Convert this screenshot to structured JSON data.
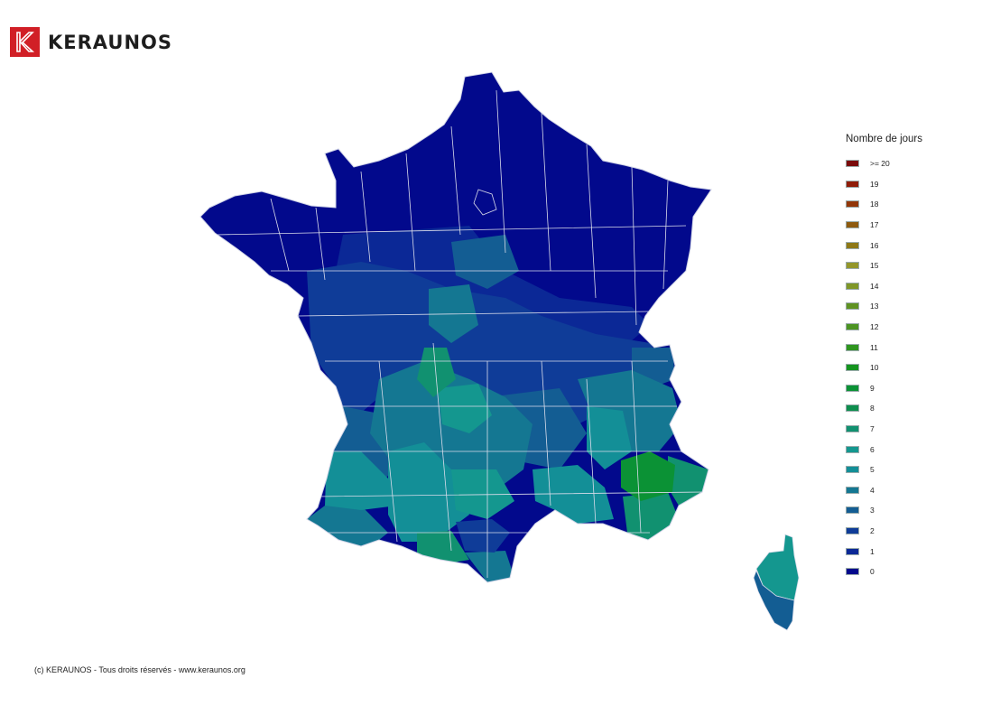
{
  "brand": {
    "name": "KERAUNOS",
    "logo_letter": "K"
  },
  "legend": {
    "title": "Nombre de jours",
    "items": [
      {
        "label": ">= 20",
        "color": "#7a0a0a"
      },
      {
        "label": "19",
        "color": "#8f1c08"
      },
      {
        "label": "18",
        "color": "#923608"
      },
      {
        "label": "17",
        "color": "#8e5a0e"
      },
      {
        "label": "16",
        "color": "#8e7816"
      },
      {
        "label": "15",
        "color": "#93962a"
      },
      {
        "label": "14",
        "color": "#7f9728"
      },
      {
        "label": "13",
        "color": "#5f9222"
      },
      {
        "label": "12",
        "color": "#4c9422"
      },
      {
        "label": "11",
        "color": "#2f951f"
      },
      {
        "label": "10",
        "color": "#15941f"
      },
      {
        "label": "9",
        "color": "#0b9235"
      },
      {
        "label": "8",
        "color": "#0d8e4d"
      },
      {
        "label": "7",
        "color": "#119170"
      },
      {
        "label": "6",
        "color": "#14978f"
      },
      {
        "label": "5",
        "color": "#138f97"
      },
      {
        "label": "4",
        "color": "#147792"
      },
      {
        "label": "3",
        "color": "#135d93"
      },
      {
        "label": "2",
        "color": "#0f3c98"
      },
      {
        "label": "1",
        "color": "#0b2896"
      },
      {
        "label": "0",
        "color": "#02098c"
      }
    ]
  },
  "footer": {
    "text": "(c) KERAUNOS - Tous droits réservés - www.keraunos.org"
  }
}
